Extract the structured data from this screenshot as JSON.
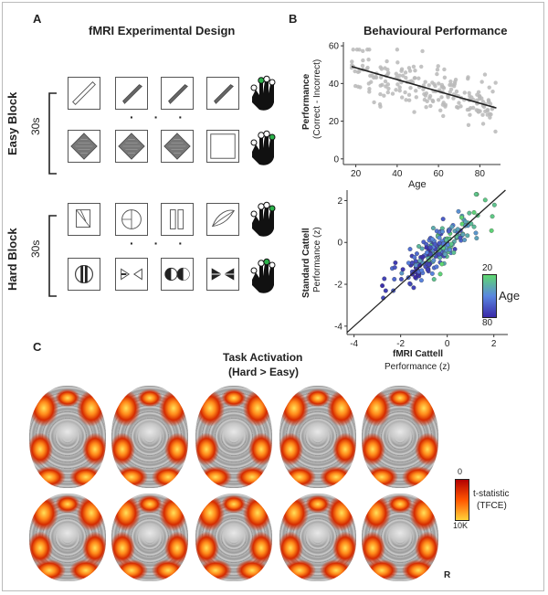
{
  "panels": {
    "a": {
      "letter": "A",
      "title": "fMRI Experimental Design"
    },
    "b": {
      "letter": "B",
      "title": "Behavioural Performance"
    },
    "c": {
      "letter": "C",
      "title_line1": "Task Activation",
      "title_line2": "(Hard > Easy)"
    }
  },
  "design": {
    "easy_label": "Easy Block",
    "easy_duration": "30s",
    "hard_label": "Hard Block",
    "hard_duration": "30s"
  },
  "scatter_top": {
    "ylabel_bold": "Performance",
    "ylabel_sub": "(Correct - Incorrect)",
    "xlabel": "Age"
  },
  "scatter_bottom": {
    "ylabel_bold": "Standard Cattell",
    "ylabel_sub": "Performance (z)",
    "xlabel_bold": "fMRI Cattell",
    "xlabel_sub": "Performance (z)",
    "colorbar_title": "Age",
    "colorbar_min": "20",
    "colorbar_max": "80"
  },
  "activation": {
    "colorbar_title_line1": "t-statistic",
    "colorbar_title_line2": "(TFCE)",
    "colorbar_min": "0",
    "colorbar_max": "10K",
    "orientation": "R"
  },
  "chart_data": [
    {
      "type": "scatter",
      "title": "Behavioural Performance",
      "xlabel": "Age",
      "ylabel": "Performance (Correct - Incorrect)",
      "xlim": [
        14,
        90
      ],
      "ylim": [
        -3,
        62
      ],
      "xticks": [
        20,
        40,
        60,
        80
      ],
      "yticks": [
        0,
        20,
        40,
        60
      ],
      "trend_line": {
        "x": [
          18,
          88
        ],
        "y": [
          49,
          27
        ]
      }
    },
    {
      "type": "scatter",
      "title": "",
      "xlabel": "fMRI Cattell Performance (z)",
      "ylabel": "Standard Cattell Performance (z)",
      "xlim": [
        -4.3,
        2.6
      ],
      "ylim": [
        -4.4,
        2.5
      ],
      "xticks": [
        -4,
        -2,
        0,
        2
      ],
      "yticks": [
        -4,
        -2,
        0,
        2
      ],
      "identity_line": {
        "x": [
          -4.3,
          2.5
        ],
        "y": [
          -4.3,
          2.5
        ]
      },
      "color_by": "Age",
      "color_range": [
        20,
        80
      ]
    }
  ]
}
